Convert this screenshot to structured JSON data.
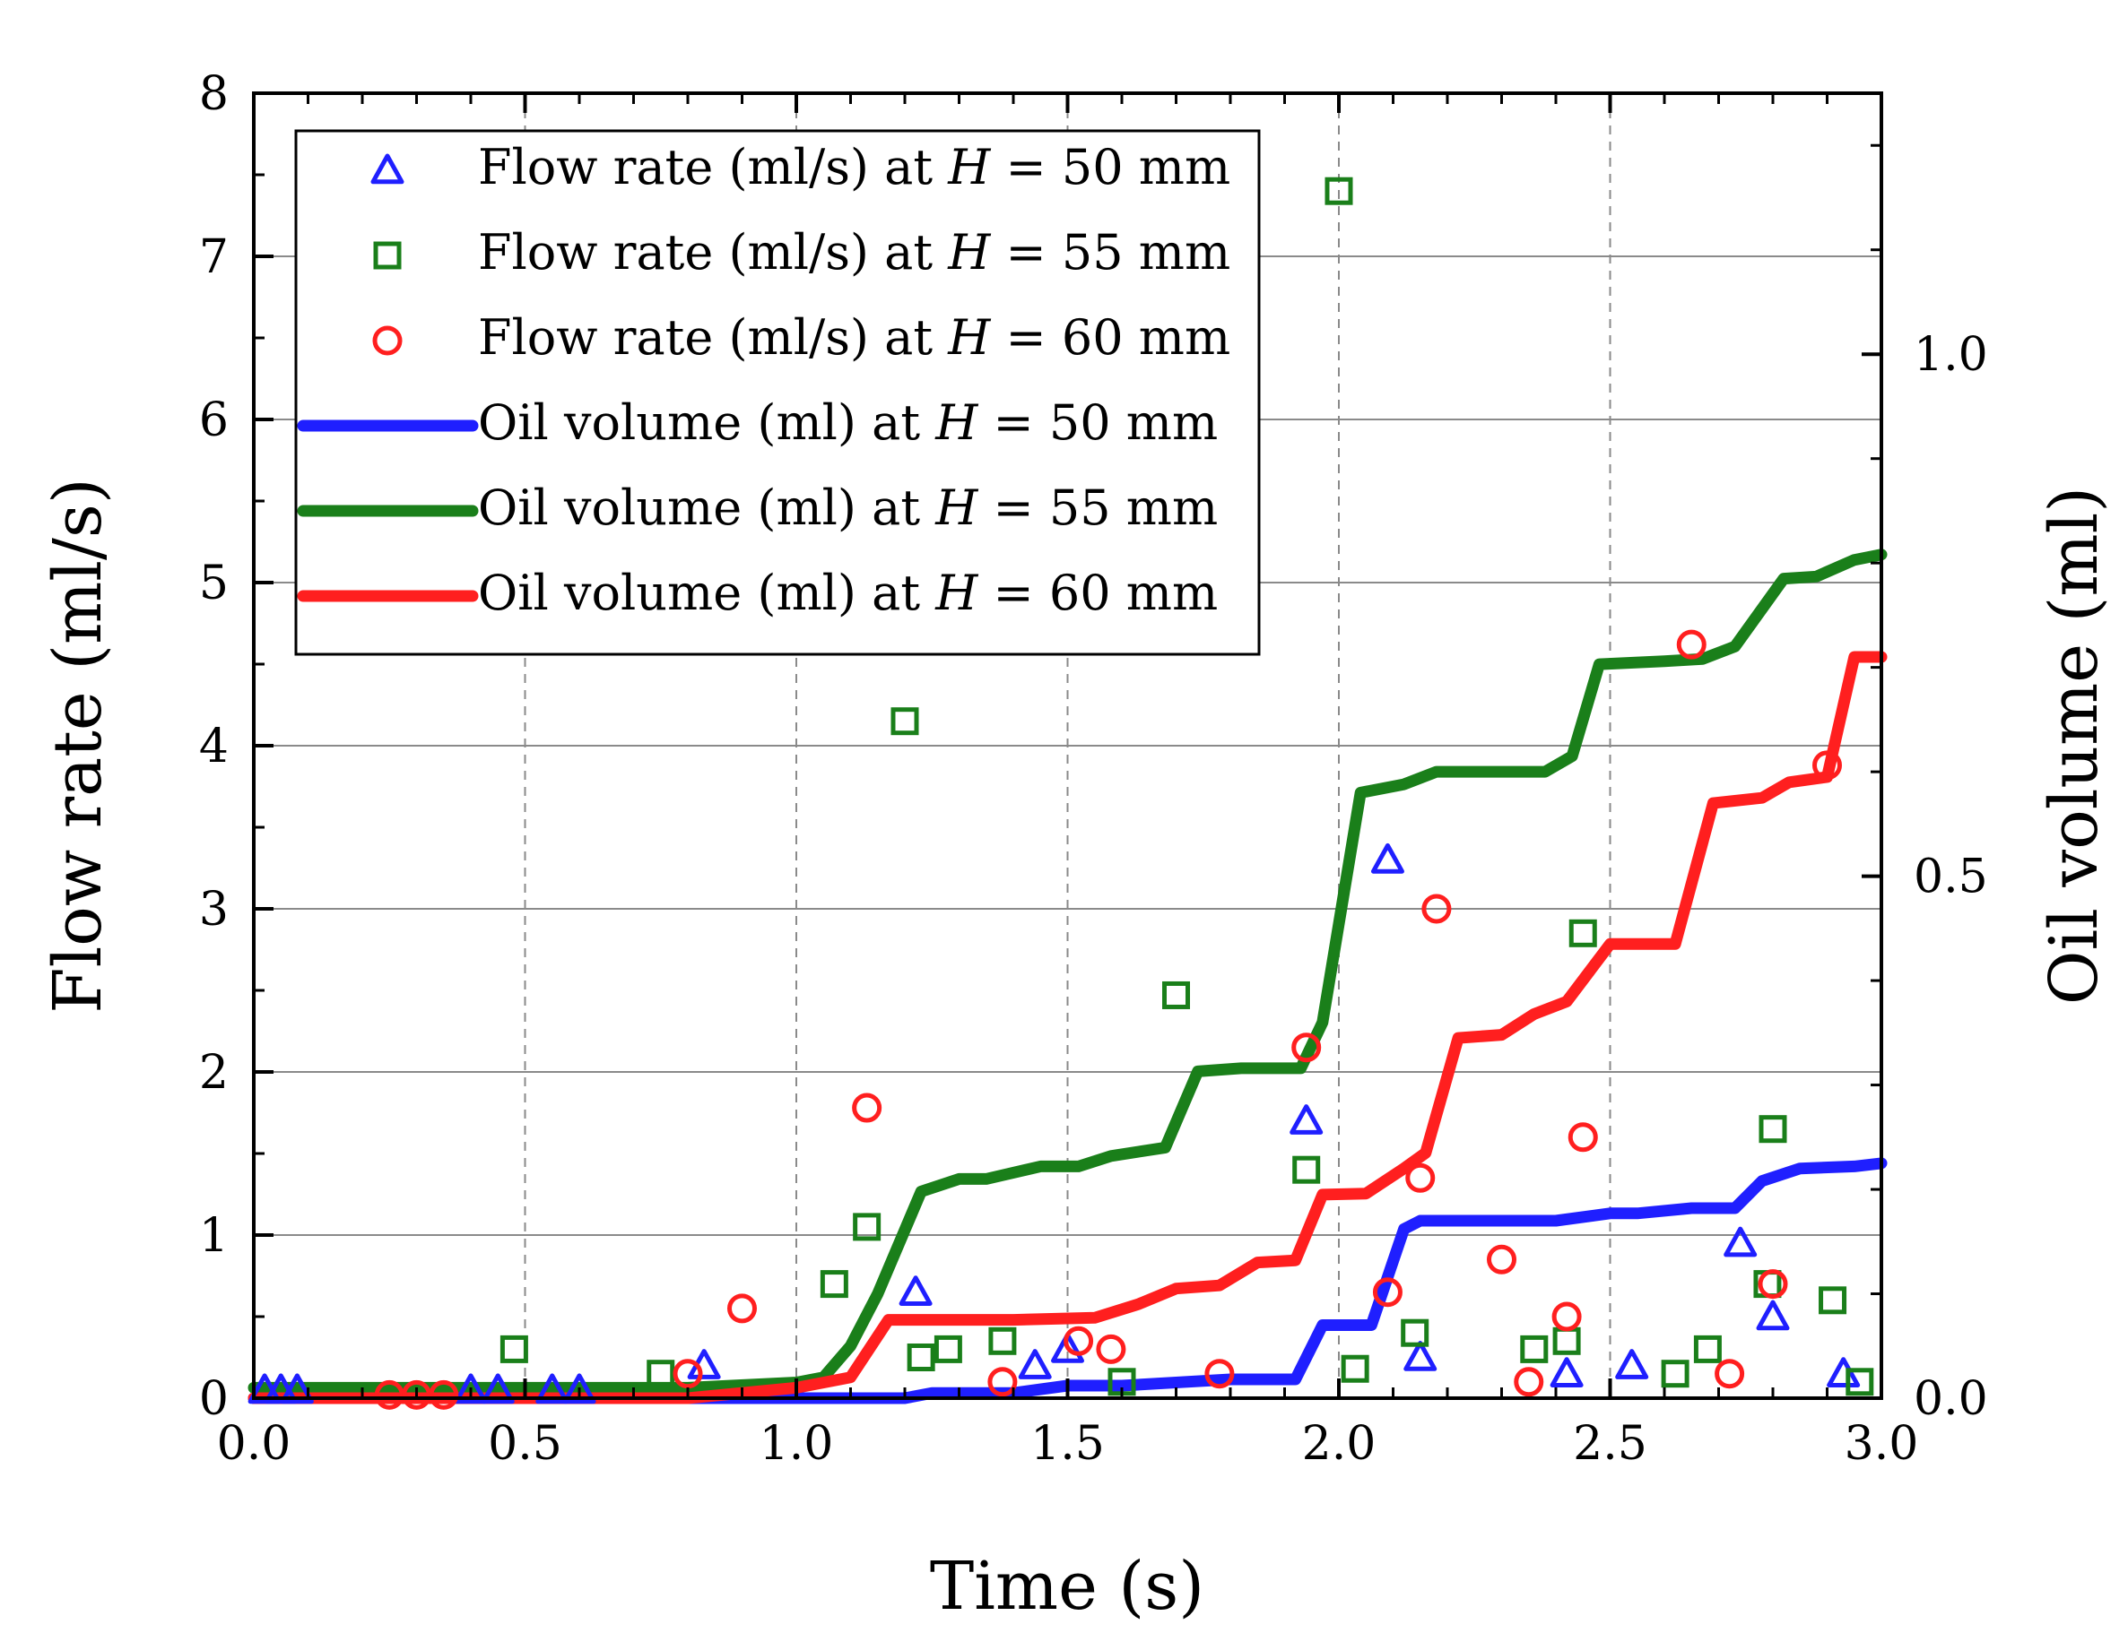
{
  "chart_data": {
    "type": "line+scatter",
    "xlabel": "Time (s)",
    "ylabel_left": "Flow rate (ml/s)",
    "ylabel_right": "Oil volume (ml)",
    "xlim": [
      0,
      3
    ],
    "ylim_left": [
      0,
      8
    ],
    "ylim_right": [
      0,
      1.25
    ],
    "x_ticks": [
      0.0,
      0.5,
      1.0,
      1.5,
      2.0,
      2.5,
      3.0
    ],
    "x_tick_labels": [
      "0.0",
      "0.5",
      "1.0",
      "1.5",
      "2.0",
      "2.5",
      "3.0"
    ],
    "y_left_ticks": [
      0,
      1,
      2,
      3,
      4,
      5,
      6,
      7,
      8
    ],
    "y_left_tick_labels": [
      "0",
      "1",
      "2",
      "3",
      "4",
      "5",
      "6",
      "7",
      "8"
    ],
    "y_right_ticks": [
      0.0,
      0.5,
      1.0
    ],
    "y_right_tick_labels": [
      "0.0",
      "0.5",
      "1.0"
    ],
    "grid": true,
    "legend_position": "top-left",
    "colors": {
      "h50": "#1f1fff",
      "h55": "#1a7f1a",
      "h60": "#ff1f1f"
    },
    "legend": [
      {
        "prefix": "Flow rate (ml/s) at ",
        "var": "H",
        "suffix": " = 50 mm",
        "marker": "triangle",
        "series": "h50"
      },
      {
        "prefix": "Flow rate (ml/s) at ",
        "var": "H",
        "suffix": " = 55 mm",
        "marker": "square",
        "series": "h55"
      },
      {
        "prefix": "Flow rate (ml/s) at ",
        "var": "H",
        "suffix": " = 60 mm",
        "marker": "circle",
        "series": "h60"
      },
      {
        "prefix": "Oil volume (ml) at ",
        "var": "H",
        "suffix": " = 50 mm",
        "marker": "line",
        "series": "h50"
      },
      {
        "prefix": "Oil volume (ml) at ",
        "var": "H",
        "suffix": " = 55 mm",
        "marker": "line",
        "series": "h55"
      },
      {
        "prefix": "Oil volume (ml) at ",
        "var": "H",
        "suffix": " = 60 mm",
        "marker": "line",
        "series": "h60"
      }
    ],
    "flow_series": [
      {
        "name": "Flow rate (ml/s) at H = 50 mm",
        "marker": "triangle",
        "color": "#1f1fff",
        "points": [
          [
            0.02,
            0.05
          ],
          [
            0.05,
            0.05
          ],
          [
            0.08,
            0.05
          ],
          [
            0.4,
            0.05
          ],
          [
            0.45,
            0.05
          ],
          [
            0.55,
            0.05
          ],
          [
            0.6,
            0.05
          ],
          [
            0.83,
            0.2
          ],
          [
            1.22,
            0.65
          ],
          [
            1.44,
            0.2
          ],
          [
            1.5,
            0.3
          ],
          [
            1.94,
            1.7
          ],
          [
            2.09,
            3.3
          ],
          [
            2.15,
            0.25
          ],
          [
            2.42,
            0.15
          ],
          [
            2.54,
            0.2
          ],
          [
            2.74,
            0.95
          ],
          [
            2.8,
            0.5
          ],
          [
            2.93,
            0.15
          ]
        ]
      },
      {
        "name": "Flow rate (ml/s) at H = 55 mm",
        "marker": "square",
        "color": "#1a7f1a",
        "points": [
          [
            0.48,
            0.3
          ],
          [
            0.75,
            0.15
          ],
          [
            1.07,
            0.7
          ],
          [
            1.13,
            1.05
          ],
          [
            1.2,
            4.15
          ],
          [
            1.23,
            0.25
          ],
          [
            1.28,
            0.3
          ],
          [
            1.38,
            0.35
          ],
          [
            1.6,
            0.1
          ],
          [
            1.7,
            2.47
          ],
          [
            1.94,
            1.4
          ],
          [
            2.0,
            7.4
          ],
          [
            2.03,
            0.18
          ],
          [
            2.14,
            0.4
          ],
          [
            2.36,
            0.3
          ],
          [
            2.42,
            0.35
          ],
          [
            2.45,
            2.85
          ],
          [
            2.62,
            0.15
          ],
          [
            2.68,
            0.3
          ],
          [
            2.79,
            0.7
          ],
          [
            2.8,
            1.65
          ],
          [
            2.91,
            0.6
          ],
          [
            2.96,
            0.1
          ]
        ]
      },
      {
        "name": "Flow rate (ml/s) at H = 60 mm",
        "marker": "circle",
        "color": "#ff1f1f",
        "points": [
          [
            0.25,
            0.02
          ],
          [
            0.3,
            0.02
          ],
          [
            0.35,
            0.02
          ],
          [
            0.8,
            0.15
          ],
          [
            0.9,
            0.55
          ],
          [
            1.13,
            1.78
          ],
          [
            1.38,
            0.1
          ],
          [
            1.52,
            0.35
          ],
          [
            1.58,
            0.3
          ],
          [
            1.78,
            0.15
          ],
          [
            1.94,
            2.15
          ],
          [
            2.09,
            0.65
          ],
          [
            2.15,
            1.35
          ],
          [
            2.18,
            3.0
          ],
          [
            2.3,
            0.85
          ],
          [
            2.35,
            0.1
          ],
          [
            2.42,
            0.5
          ],
          [
            2.45,
            1.6
          ],
          [
            2.65,
            4.62
          ],
          [
            2.72,
            0.15
          ],
          [
            2.8,
            0.7
          ],
          [
            2.9,
            3.88
          ]
        ]
      }
    ],
    "volume_series": [
      {
        "name": "Oil volume (ml) at H = 50 mm",
        "color": "#1f1fff",
        "x": [
          0,
          1.0,
          1.2,
          1.25,
          1.4,
          1.5,
          1.6,
          1.8,
          1.92,
          1.97,
          2.06,
          2.12,
          2.15,
          2.25,
          2.4,
          2.5,
          2.55,
          2.65,
          2.73,
          2.78,
          2.85,
          2.95,
          3.0
        ],
        "y": [
          0,
          0,
          0,
          0.005,
          0.005,
          0.012,
          0.012,
          0.018,
          0.018,
          0.07,
          0.07,
          0.162,
          0.17,
          0.17,
          0.17,
          0.177,
          0.177,
          0.182,
          0.182,
          0.208,
          0.22,
          0.222,
          0.225
        ]
      },
      {
        "name": "Oil volume (ml) at H = 55 mm",
        "color": "#1a7f1a",
        "x": [
          0,
          0.8,
          1.0,
          1.05,
          1.1,
          1.15,
          1.23,
          1.3,
          1.35,
          1.45,
          1.52,
          1.58,
          1.68,
          1.74,
          1.82,
          1.93,
          1.97,
          2.04,
          2.12,
          2.18,
          2.3,
          2.38,
          2.43,
          2.48,
          2.6,
          2.67,
          2.73,
          2.82,
          2.88,
          2.95,
          3.0
        ],
        "y": [
          0.01,
          0.01,
          0.015,
          0.02,
          0.05,
          0.1,
          0.198,
          0.21,
          0.21,
          0.222,
          0.222,
          0.232,
          0.24,
          0.313,
          0.316,
          0.316,
          0.36,
          0.58,
          0.588,
          0.6,
          0.6,
          0.6,
          0.615,
          0.703,
          0.706,
          0.708,
          0.72,
          0.785,
          0.787,
          0.803,
          0.808
        ]
      },
      {
        "name": "Oil volume (ml) at H = 60 mm",
        "color": "#ff1f1f",
        "x": [
          0,
          0.8,
          1.0,
          1.1,
          1.17,
          1.3,
          1.4,
          1.55,
          1.63,
          1.7,
          1.78,
          1.85,
          1.92,
          1.97,
          2.05,
          2.12,
          2.16,
          2.22,
          2.3,
          2.36,
          2.42,
          2.5,
          2.62,
          2.69,
          2.78,
          2.83,
          2.9,
          2.95,
          3.0
        ],
        "y": [
          0,
          0,
          0.01,
          0.02,
          0.075,
          0.075,
          0.075,
          0.077,
          0.09,
          0.105,
          0.108,
          0.13,
          0.132,
          0.195,
          0.196,
          0.22,
          0.235,
          0.345,
          0.348,
          0.368,
          0.38,
          0.435,
          0.435,
          0.57,
          0.575,
          0.59,
          0.595,
          0.71,
          0.71
        ]
      }
    ]
  }
}
